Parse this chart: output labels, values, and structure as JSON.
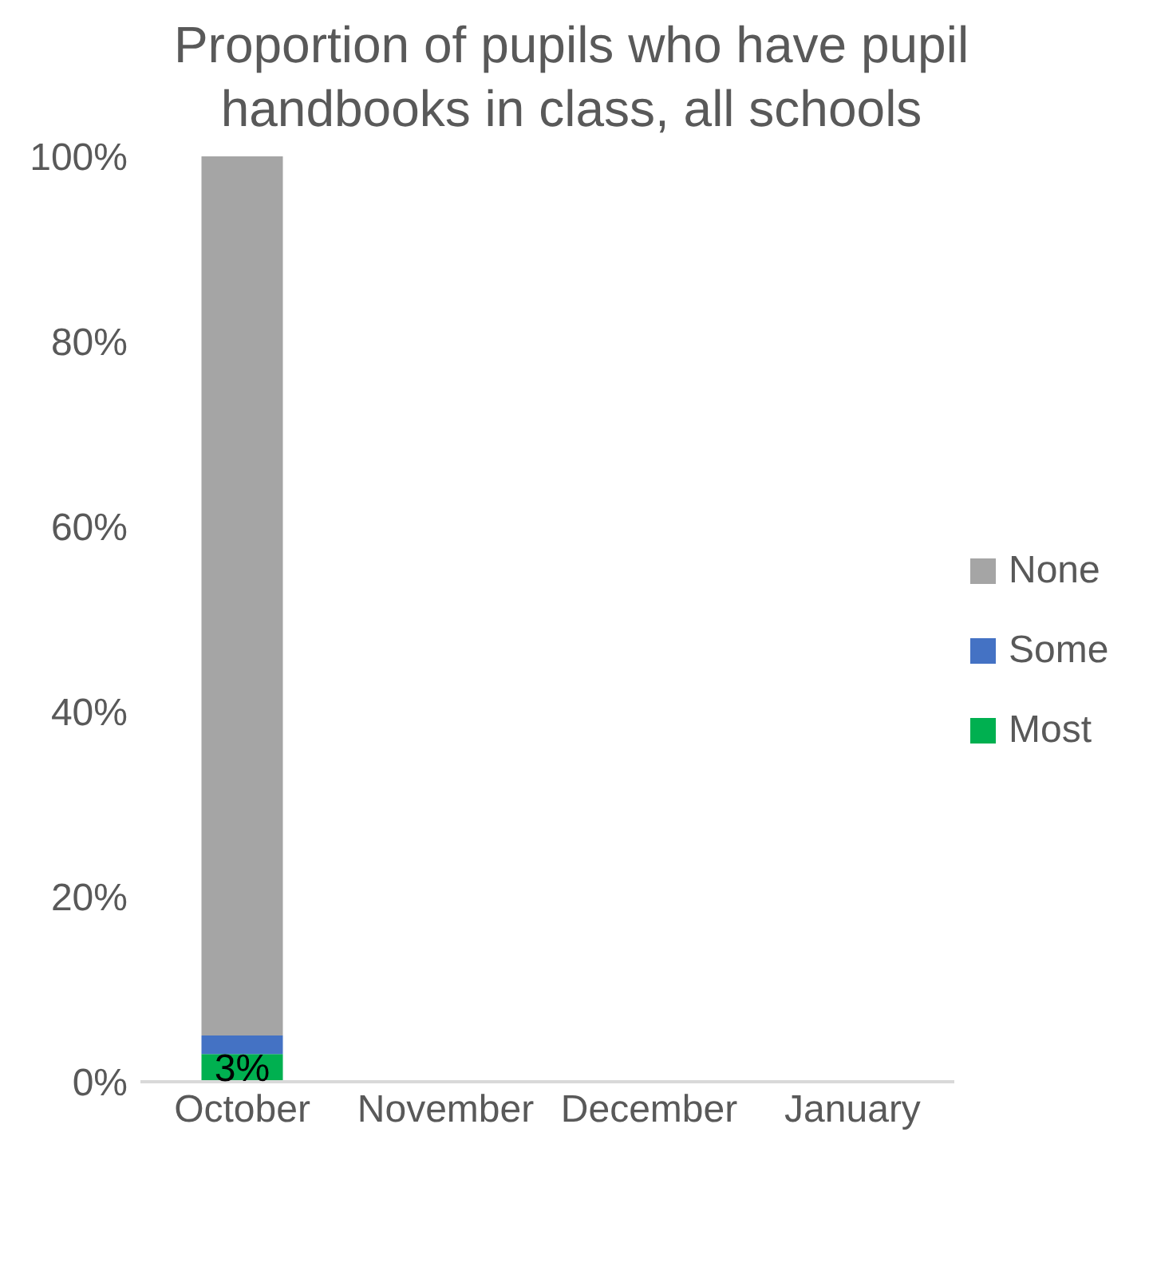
{
  "chart_data": {
    "type": "bar",
    "title": "Proportion of pupils who have pupil handbooks in class, all schools",
    "categories": [
      "October",
      "November",
      "December",
      "January"
    ],
    "stacked": true,
    "series": [
      {
        "name": "Most",
        "color": "#00b050",
        "values": [
          3,
          null,
          null,
          null
        ],
        "value_labels": [
          "3%",
          null,
          null,
          null
        ]
      },
      {
        "name": "Some",
        "color": "#4472c4",
        "values": [
          2,
          null,
          null,
          null
        ]
      },
      {
        "name": "None",
        "color": "#a5a5a5",
        "values": [
          95,
          null,
          null,
          null
        ]
      }
    ],
    "ylim": [
      0,
      100
    ],
    "yticks": [
      {
        "value": 0,
        "label": "0%"
      },
      {
        "value": 20,
        "label": "20%"
      },
      {
        "value": 40,
        "label": "40%"
      },
      {
        "value": 60,
        "label": "60%"
      },
      {
        "value": 80,
        "label": "80%"
      },
      {
        "value": 100,
        "label": "100%"
      }
    ],
    "grid": false,
    "legend": "right"
  }
}
